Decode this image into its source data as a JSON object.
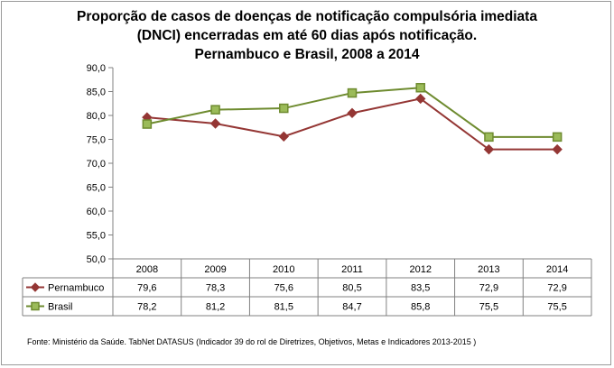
{
  "chart_data": {
    "type": "line",
    "title_lines": [
      "Proporção de casos de doenças de notificação compulsória imediata",
      "(DNCI) encerradas em até 60 dias após notificação.",
      "Pernambuco e Brasil, 2008 a 2014"
    ],
    "categories": [
      "2008",
      "2009",
      "2010",
      "2011",
      "2012",
      "2013",
      "2014"
    ],
    "ylim": [
      50,
      90
    ],
    "yticks": [
      "50,0",
      "55,0",
      "60,0",
      "65,0",
      "70,0",
      "75,0",
      "80,0",
      "85,0",
      "90,0"
    ],
    "ytick_values": [
      50,
      55,
      60,
      65,
      70,
      75,
      80,
      85,
      90
    ],
    "series": [
      {
        "name": "Pernambuco",
        "values": [
          79.6,
          78.3,
          75.6,
          80.5,
          83.5,
          72.9,
          72.9
        ],
        "labels": [
          "79,6",
          "78,3",
          "75,6",
          "80,5",
          "83,5",
          "72,9",
          "72,9"
        ],
        "color": "#943634",
        "marker": "diamond",
        "marker_fill": "#943634"
      },
      {
        "name": "Brasil",
        "values": [
          78.2,
          81.2,
          81.5,
          84.7,
          85.8,
          75.5,
          75.5
        ],
        "labels": [
          "78,2",
          "81,2",
          "81,5",
          "84,7",
          "85,8",
          "75,5",
          "75,5"
        ],
        "color": "#6e8b2f",
        "marker": "square",
        "marker_fill": "#9bbb59"
      }
    ],
    "grid": false,
    "legend": "data-table"
  },
  "source": "Fonte: Ministério da Saúde. TabNet DATASUS (Indicador 39 do rol de Diretrizes, Objetivos, Metas e Indicadores 2013-2015 )"
}
